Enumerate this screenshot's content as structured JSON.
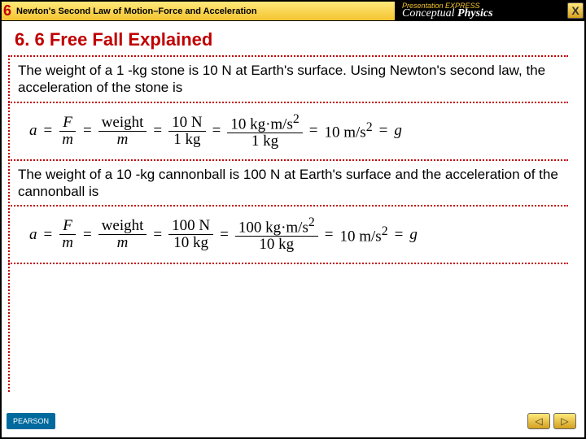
{
  "chapter": {
    "number": "6",
    "title": "Newton's Second Law of Motion–Force and Acceleration"
  },
  "brand": {
    "express": "Presentation EXPRESS",
    "name_a": "Conceptual",
    "name_b": "Physics"
  },
  "close_label": "X",
  "section": {
    "number": "6. 6",
    "title": "Free Fall Explained"
  },
  "para1": "The weight of a 1 -kg stone is 10 N at Earth's surface. Using Newton's second law, the acceleration of the stone is",
  "para2": "The weight of a 10 -kg cannonball is 100 N at Earth's surface and the acceleration of the cannonball is",
  "eq1": {
    "a": "a",
    "F": "F",
    "m": "m",
    "weight": "weight",
    "ten_n": "10 N",
    "one_kg": "1 kg",
    "ten_kgms2": "10 kg·m/s",
    "result": "10 m/s",
    "g": "g"
  },
  "eq2": {
    "a": "a",
    "F": "F",
    "m": "m",
    "weight": "weight",
    "hundred_n": "100 N",
    "ten_kg": "10 kg",
    "hundred_kgms2": "100 kg·m/s",
    "result": "10 m/s",
    "g": "g"
  },
  "footer": {
    "pearson": "PEARSON",
    "prev": "◁",
    "next": "▷"
  },
  "colors": {
    "accent": "#c00000",
    "gold1": "#ffe97a",
    "gold2": "#f4c430",
    "pearson": "#006a9e"
  }
}
